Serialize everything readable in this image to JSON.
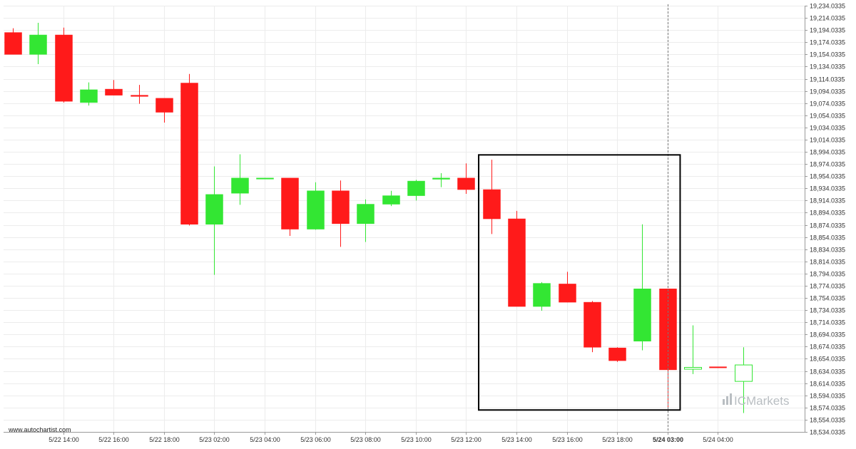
{
  "colors": {
    "bull": "#33e633",
    "bear": "#ff1a1a",
    "grid": "#ececec",
    "axis": "#9a9a9a",
    "frame": "#000000",
    "watermark_logo": "#b9bec2"
  },
  "watermark": "www.autochartist.com",
  "logo": {
    "prefix": "IC",
    "suffix": "Markets",
    "icon": "bar-chart-logo-icon"
  },
  "chart_data": {
    "type": "candlestick",
    "title": "",
    "xlabel": "",
    "ylabel": "",
    "ylim": [
      18534.0335,
      19234.0335
    ],
    "y_ticks": [
      "19,234.0335",
      "19,214.0335",
      "19,194.0335",
      "19,174.0335",
      "19,154.0335",
      "19,134.0335",
      "19,114.0335",
      "19,094.0335",
      "19,074.0335",
      "19,054.0335",
      "19,034.0335",
      "19,014.0335",
      "18,994.0335",
      "18,974.0335",
      "18,954.0335",
      "18,934.0335",
      "18,914.0335",
      "18,894.0335",
      "18,874.0335",
      "18,854.0335",
      "18,834.0335",
      "18,814.0335",
      "18,794.0335",
      "18,774.0335",
      "18,754.0335",
      "18,734.0335",
      "18,714.0335",
      "18,694.0335",
      "18,674.0335",
      "18,654.0335",
      "18,634.0335",
      "18,614.0335",
      "18,594.0335",
      "18,574.0335",
      "18,554.0335",
      "18,534.0335"
    ],
    "y_tick_values": [
      19234.0335,
      19214.0335,
      19194.0335,
      19174.0335,
      19154.0335,
      19134.0335,
      19114.0335,
      19094.0335,
      19074.0335,
      19054.0335,
      19034.0335,
      19014.0335,
      18994.0335,
      18974.0335,
      18954.0335,
      18934.0335,
      18914.0335,
      18894.0335,
      18874.0335,
      18854.0335,
      18834.0335,
      18814.0335,
      18794.0335,
      18774.0335,
      18754.0335,
      18734.0335,
      18714.0335,
      18694.0335,
      18674.0335,
      18654.0335,
      18634.0335,
      18614.0335,
      18594.0335,
      18574.0335,
      18554.0335,
      18534.0335
    ],
    "x_ticks": [
      {
        "label": "5/22 14:00",
        "index": 2,
        "bold": false
      },
      {
        "label": "5/22 16:00",
        "index": 4,
        "bold": false
      },
      {
        "label": "5/22 18:00",
        "index": 6,
        "bold": false
      },
      {
        "label": "5/23 02:00",
        "index": 8,
        "bold": false
      },
      {
        "label": "5/23 04:00",
        "index": 10,
        "bold": false
      },
      {
        "label": "5/23 06:00",
        "index": 12,
        "bold": false
      },
      {
        "label": "5/23 08:00",
        "index": 14,
        "bold": false
      },
      {
        "label": "5/23 10:00",
        "index": 16,
        "bold": false
      },
      {
        "label": "5/23 12:00",
        "index": 18,
        "bold": false
      },
      {
        "label": "5/23 14:00",
        "index": 20,
        "bold": false
      },
      {
        "label": "5/23 16:00",
        "index": 22,
        "bold": false
      },
      {
        "label": "5/23 18:00",
        "index": 24,
        "bold": false
      },
      {
        "label": "5/24 03:00",
        "index": 26,
        "bold": true
      },
      {
        "label": "5/24 04:00",
        "index": 28,
        "bold": false
      }
    ],
    "current_marker_index": 26,
    "pattern_box": {
      "from_index": 18.5,
      "to_index": 26.5,
      "y_top": 18989,
      "y_bottom": 18570
    },
    "candles": [
      {
        "o": 19190,
        "h": 19197,
        "c": 19154,
        "l": 19154
      },
      {
        "o": 19154,
        "h": 19206,
        "c": 19186,
        "l": 19138
      },
      {
        "o": 19186,
        "h": 19198,
        "c": 19077,
        "l": 19075
      },
      {
        "o": 19075,
        "h": 19108,
        "c": 19096,
        "l": 19070
      },
      {
        "o": 19097,
        "h": 19112,
        "c": 19087,
        "l": 19087
      },
      {
        "o": 19087,
        "h": 19104,
        "c": 19085,
        "l": 19073
      },
      {
        "o": 19082,
        "h": 19082,
        "c": 19059,
        "l": 19042
      },
      {
        "o": 19107,
        "h": 19122,
        "c": 18875,
        "l": 18873
      },
      {
        "o": 18875,
        "h": 18970,
        "c": 18924,
        "l": 18792
      },
      {
        "o": 18926,
        "h": 18990,
        "c": 18951,
        "l": 18907
      },
      {
        "o": 18951,
        "h": 18951,
        "c": 18951,
        "l": 18951
      },
      {
        "o": 18951,
        "h": 18951,
        "c": 18867,
        "l": 18856
      },
      {
        "o": 18867,
        "h": 18944,
        "c": 18930,
        "l": 18866
      },
      {
        "o": 18930,
        "h": 18947,
        "c": 18876,
        "l": 18838
      },
      {
        "o": 18876,
        "h": 18916,
        "c": 18908,
        "l": 18846
      },
      {
        "o": 18908,
        "h": 18930,
        "c": 18922,
        "l": 18905
      },
      {
        "o": 18922,
        "h": 18948,
        "c": 18946,
        "l": 18914
      },
      {
        "o": 18949,
        "h": 18959,
        "c": 18951,
        "l": 18936
      },
      {
        "o": 18951,
        "h": 18975,
        "c": 18932,
        "l": 18925
      },
      {
        "o": 18932,
        "h": 18981,
        "c": 18884,
        "l": 18859
      },
      {
        "o": 18884,
        "h": 18897,
        "c": 18740,
        "l": 18740
      },
      {
        "o": 18740,
        "h": 18780,
        "c": 18778,
        "l": 18733
      },
      {
        "o": 18777,
        "h": 18797,
        "c": 18747,
        "l": 18747
      },
      {
        "o": 18747,
        "h": 18749,
        "c": 18673,
        "l": 18665
      },
      {
        "o": 18672,
        "h": 18673,
        "c": 18651,
        "l": 18649
      },
      {
        "o": 18683,
        "h": 18875,
        "c": 18769,
        "l": 18668
      },
      {
        "o": 18769,
        "h": 18769,
        "c": 18636,
        "l": 18573
      },
      {
        "o": 18637,
        "h": 18709,
        "c": 18640,
        "l": 18629
      },
      {
        "o": 18641,
        "h": 18641,
        "c": 18640,
        "l": 18640
      },
      {
        "o": 18617,
        "h": 18673,
        "c": 18644,
        "l": 18565
      }
    ],
    "hollow_indices": [
      27,
      29
    ]
  }
}
